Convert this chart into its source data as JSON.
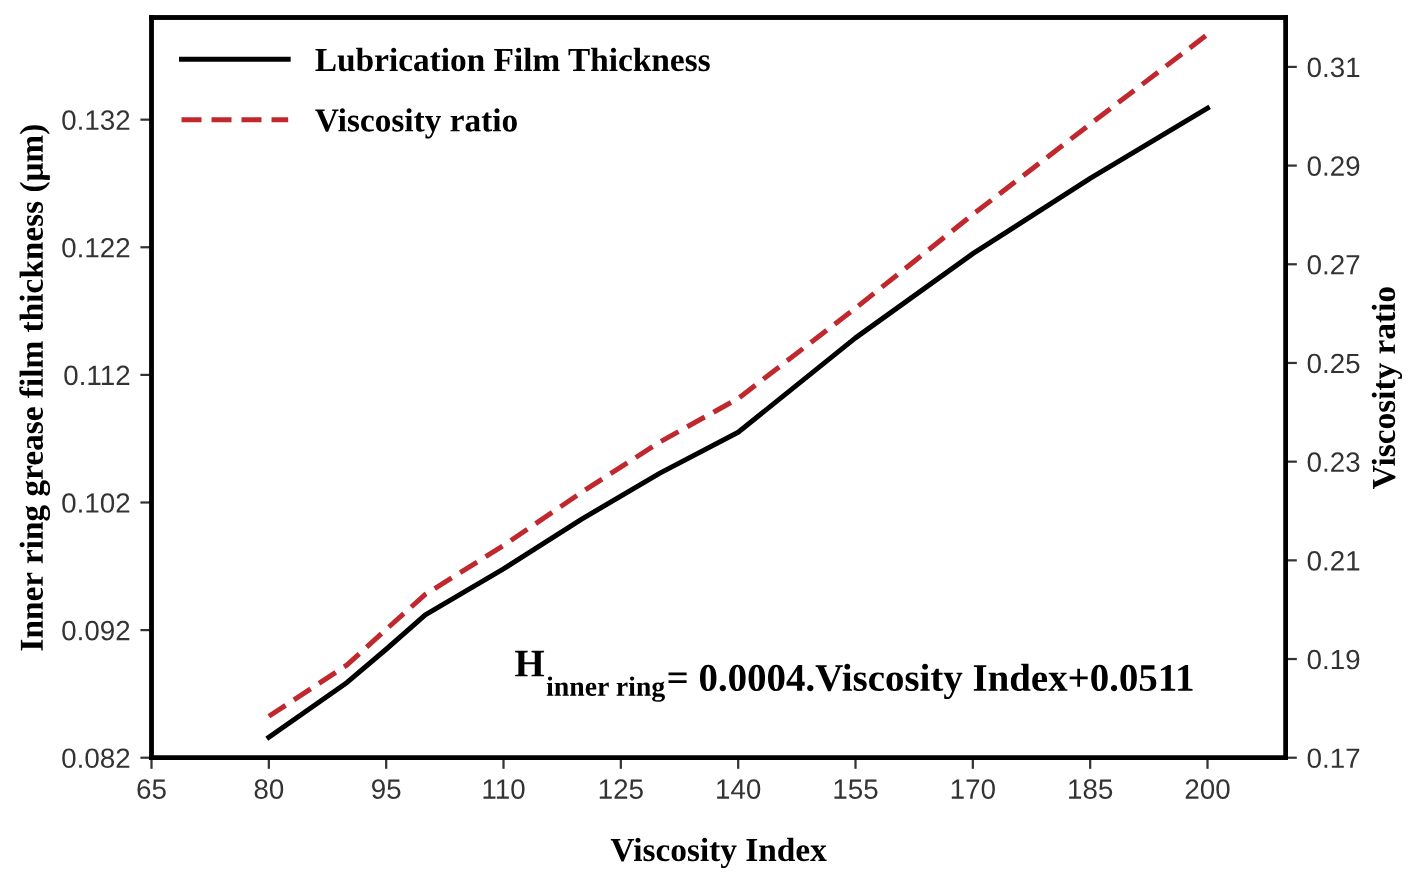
{
  "chart_data": {
    "type": "line",
    "xlabel": "Viscosity Index",
    "ylabel": "Inner ring grease film thickness (μm)",
    "y2label": "Viscosity ratio",
    "x": [
      80,
      90,
      95,
      100,
      110,
      120,
      130,
      140,
      155,
      170,
      185,
      200
    ],
    "series": [
      {
        "name": "Lubrication Film Thickness",
        "color": "#000000",
        "line_style": "solid",
        "values": [
          0.0836,
          0.0879,
          0.0905,
          0.0932,
          0.0968,
          0.1007,
          0.1043,
          0.1075,
          0.1149,
          0.1215,
          0.1274,
          0.1329
        ]
      },
      {
        "name": "Viscosity ratio",
        "color": "#c0282d",
        "line_style": "dashed",
        "axis": "y2",
        "values": [
          0.1784,
          0.1888,
          0.196,
          0.2031,
          0.213,
          0.2238,
          0.234,
          0.2428,
          0.2611,
          0.2801,
          0.2984,
          0.3166
        ]
      }
    ],
    "xlim": [
      65,
      210
    ],
    "xticks": [
      65,
      80,
      95,
      110,
      125,
      140,
      155,
      170,
      185,
      200
    ],
    "ylim": [
      0.082,
      0.14
    ],
    "yticks": [
      {
        "value": 0.082,
        "label": "0.082"
      },
      {
        "value": 0.092,
        "label": "0.092"
      },
      {
        "value": 0.102,
        "label": "0.102"
      },
      {
        "value": 0.112,
        "label": "0.112"
      },
      {
        "value": 0.122,
        "label": "0.122"
      },
      {
        "value": 0.132,
        "label": "0.132"
      }
    ],
    "y2lim": [
      0.17,
      0.32
    ],
    "y2ticks": [
      0.17,
      0.19,
      0.21,
      0.23,
      0.25,
      0.27,
      0.29,
      0.31
    ],
    "annotations": [
      "H$_{inner ring}$= 0.0004.Viscosity Index+0.0511"
    ],
    "legend": "top left",
    "grid": false,
    "marker": "none"
  }
}
